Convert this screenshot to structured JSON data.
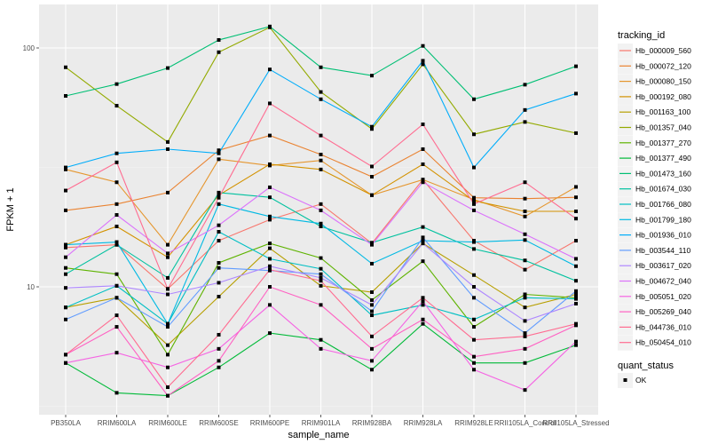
{
  "chart_data": {
    "type": "line",
    "title": "",
    "xlabel": "sample_name",
    "ylabel": "FPKM + 1",
    "y_scale": "log10",
    "ylim": [
      2.7,
      175
    ],
    "y_ticks": [
      10,
      100
    ],
    "y_tick_labels": [
      "10",
      "100"
    ],
    "grid": true,
    "legend_position": "right",
    "categories": [
      "PB350LA",
      "RRIM600LA",
      "RRIM600LE",
      "RRIM600SE",
      "RRIM600PE",
      "RRIM901LA",
      "RRIM928BA",
      "RRIM928LA",
      "RRIM928LE",
      "RRII105LA_Control",
      "RRII105LA_Stressed"
    ],
    "legend_title": "tracking_id",
    "series": [
      {
        "name": "Hb_000009_560",
        "color": "#F8766D",
        "values": [
          14.6,
          15.0,
          9.8,
          15.6,
          19.1,
          22.2,
          15.2,
          28.1,
          15.6,
          11.8,
          15.6
        ]
      },
      {
        "name": "Hb_000072_120",
        "color": "#EA8331",
        "values": [
          20.9,
          22.2,
          24.8,
          37.3,
          43.0,
          35.8,
          28.9,
          37.7,
          23.6,
          23.4,
          23.7
        ]
      },
      {
        "name": "Hb_000080_150",
        "color": "#E5962E",
        "values": [
          31.0,
          27.4,
          15.0,
          34.2,
          32.2,
          33.8,
          24.2,
          28.1,
          23.2,
          19.7,
          26.2
        ]
      },
      {
        "name": "Hb_000192_080",
        "color": "#D39200",
        "values": [
          15.0,
          17.9,
          13.3,
          24.2,
          32.6,
          31.0,
          24.2,
          32.6,
          22.9,
          20.7,
          20.7
        ]
      },
      {
        "name": "Hb_001163_100",
        "color": "#B79F00",
        "values": [
          8.2,
          9.0,
          5.7,
          9.1,
          14.5,
          10.1,
          9.5,
          15.2,
          11.2,
          8.2,
          9.3
        ]
      },
      {
        "name": "Hb_001357_040",
        "color": "#93AA00",
        "values": [
          83.0,
          57.3,
          40.4,
          96.0,
          122.0,
          65.4,
          45.8,
          85.4,
          43.5,
          49.0,
          44.0
        ]
      },
      {
        "name": "Hb_001377_270",
        "color": "#5EB300",
        "values": [
          12.0,
          11.3,
          5.2,
          12.6,
          15.2,
          13.2,
          8.8,
          12.8,
          6.8,
          9.3,
          9.0
        ]
      },
      {
        "name": "Hb_001377_490",
        "color": "#00BA38",
        "values": [
          4.8,
          3.6,
          3.5,
          4.6,
          6.4,
          6.0,
          4.5,
          7.0,
          4.8,
          4.8,
          5.7
        ]
      },
      {
        "name": "Hb_001473_160",
        "color": "#00BF74",
        "values": [
          63.0,
          70.6,
          82.4,
          108.0,
          123.0,
          83.0,
          76.6,
          102.0,
          61.0,
          70.2,
          83.8
        ]
      },
      {
        "name": "Hb_001674_030",
        "color": "#00C19F",
        "values": [
          11.3,
          15.0,
          10.9,
          24.8,
          23.7,
          17.9,
          15.3,
          17.8,
          14.4,
          12.9,
          10.6
        ]
      },
      {
        "name": "Hb_001766_080",
        "color": "#00BFC4",
        "values": [
          8.2,
          10.1,
          7.0,
          17.0,
          13.1,
          11.9,
          7.6,
          8.4,
          7.3,
          9.0,
          8.9
        ]
      },
      {
        "name": "Hb_001799_180",
        "color": "#00B9E3",
        "values": [
          15.0,
          15.4,
          7.0,
          22.2,
          19.7,
          18.4,
          12.5,
          15.6,
          15.4,
          15.7,
          12.2
        ]
      },
      {
        "name": "Hb_001936_010",
        "color": "#00ADFA",
        "values": [
          31.6,
          36.2,
          37.7,
          36.2,
          81.3,
          61.0,
          46.8,
          88.4,
          31.6,
          55.0,
          64.4
        ]
      },
      {
        "name": "Hb_003544_110",
        "color": "#619CFF",
        "values": [
          7.3,
          9.0,
          6.8,
          12.0,
          11.7,
          11.3,
          7.9,
          16.1,
          9.0,
          6.4,
          9.6
        ]
      },
      {
        "name": "Hb_003617_020",
        "color": "#AE87FF",
        "values": [
          9.9,
          10.1,
          9.3,
          10.4,
          12.2,
          10.9,
          8.4,
          15.2,
          10.0,
          7.2,
          8.5
        ]
      },
      {
        "name": "Hb_004672_040",
        "color": "#DB72FB",
        "values": [
          13.3,
          20.0,
          13.8,
          18.1,
          26.1,
          20.9,
          15.0,
          27.4,
          20.9,
          16.6,
          13.1
        ]
      },
      {
        "name": "Hb_005051_020",
        "color": "#F564E3",
        "values": [
          4.8,
          5.3,
          4.6,
          5.5,
          8.4,
          5.5,
          4.9,
          8.7,
          4.5,
          3.7,
          5.9
        ]
      },
      {
        "name": "Hb_005269_040",
        "color": "#FF61C3",
        "values": [
          5.2,
          6.8,
          3.5,
          4.9,
          10.0,
          8.4,
          5.5,
          7.3,
          5.1,
          5.5,
          6.9
        ]
      },
      {
        "name": "Hb_044736_010",
        "color": "#FF6C91",
        "values": [
          5.2,
          7.6,
          3.8,
          6.3,
          11.8,
          10.6,
          6.2,
          9.0,
          6.0,
          6.2,
          7.0
        ]
      },
      {
        "name": "Hb_050454_010",
        "color": "#FF6C91",
        "values": [
          25.3,
          33.2,
          9.8,
          23.6,
          58.6,
          43.0,
          31.9,
          47.9,
          22.2,
          27.4,
          19.3
        ]
      }
    ],
    "shape_legend": {
      "title": "quant_status",
      "items": [
        {
          "label": "OK",
          "shape": "square"
        }
      ]
    }
  }
}
